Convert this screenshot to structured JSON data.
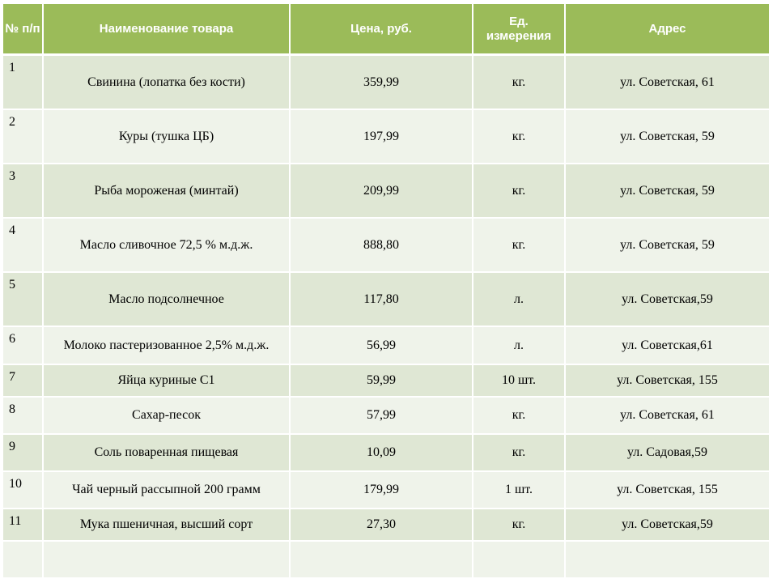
{
  "headers": {
    "num": "№ п/п",
    "name": "Наименование товара",
    "price": "Цена, руб.",
    "unit": "Ед. измерения",
    "address": "Адрес"
  },
  "rows": [
    {
      "num": "1",
      "name": "Свинина (лопатка без кости)",
      "price": "359,99",
      "unit": "кг.",
      "address": "ул. Советская, 61"
    },
    {
      "num": "2",
      "name": "Куры (тушка ЦБ)",
      "price": "197,99",
      "unit": "кг.",
      "address": "ул. Советская, 59"
    },
    {
      "num": "3",
      "name": "Рыба мороженая (минтай)",
      "price": "209,99",
      "unit": "кг.",
      "address": "ул. Советская, 59"
    },
    {
      "num": "4",
      "name": "Масло сливочное 72,5 % м.д.ж.",
      "price": "888,80",
      "unit": "кг.",
      "address": "ул. Советская, 59"
    },
    {
      "num": "5",
      "name": "Масло подсолнечное",
      "price": "117,80",
      "unit": "л.",
      "address": "ул. Советская,59"
    },
    {
      "num": "6",
      "name": "Молоко пастеризованное 2,5% м.д.ж.",
      "price": "56,99",
      "unit": "л.",
      "address": "ул. Советская,61"
    },
    {
      "num": "7",
      "name": "Яйца куриные С1",
      "price": "59,99",
      "unit": "10 шт.",
      "address": "ул. Советская, 155"
    },
    {
      "num": "8",
      "name": "Сахар-песок",
      "price": "57,99",
      "unit": "кг.",
      "address": "ул. Советская, 61"
    },
    {
      "num": "9",
      "name": "Соль поваренная пищевая",
      "price": "10,09",
      "unit": "кг.",
      "address": "ул. Садовая,59"
    },
    {
      "num": "10",
      "name": "Чай черный рассыпной 200 грамм",
      "price": "179,99",
      "unit": "1 шт.",
      "address": "ул. Советская, 155"
    },
    {
      "num": "11",
      "name": "Мука пшеничная, высший сорт",
      "price": "27,30",
      "unit": "кг.",
      "address": "ул. Советская,59"
    }
  ],
  "colors": {
    "header": "#9bbb59",
    "row_dark": "#dfe7d4",
    "row_light": "#eff3ea"
  }
}
